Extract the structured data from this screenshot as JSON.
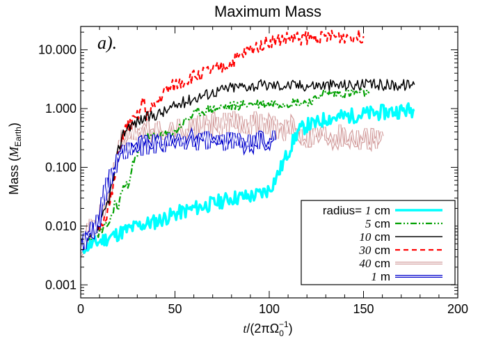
{
  "chart_data": {
    "type": "line",
    "title": "Maximum Mass",
    "panel_label": "a).",
    "xlabel": {
      "t": "t",
      "rest": "/(2πΩ",
      "sub": "0",
      "sup": "−1",
      "close": ")"
    },
    "ylabel": {
      "pre": "Mass (",
      "M": "M",
      "sub": "Earth",
      "close": ")"
    },
    "xlim": [
      0,
      200
    ],
    "ylim": [
      0.0006,
      25
    ],
    "yscale": "log",
    "xticks": [
      0,
      50,
      100,
      150,
      200
    ],
    "xtick_labels": [
      "0",
      "50",
      "100",
      "150",
      "200"
    ],
    "yticks": [
      0.001,
      0.01,
      0.1,
      1,
      10
    ],
    "ytick_labels": [
      "0.001",
      "0.010",
      "0.100",
      "1.000",
      "10.000"
    ],
    "legend": {
      "position": "bottom-right",
      "entries": [
        {
          "prefix": "radius=",
          "value": "1",
          "unit": "cm",
          "series": 0
        },
        {
          "prefix": "",
          "value": "5",
          "unit": "cm",
          "series": 1
        },
        {
          "prefix": "",
          "value": "10",
          "unit": "cm",
          "series": 2
        },
        {
          "prefix": "",
          "value": "30",
          "unit": "cm",
          "series": 3
        },
        {
          "prefix": "",
          "value": "40",
          "unit": "cm",
          "series": 4
        },
        {
          "prefix": "",
          "value": "1",
          "unit": "m",
          "series": 5
        }
      ]
    },
    "series": [
      {
        "color": "#00ffff",
        "style": "solid",
        "width": 3.5,
        "noise": 0.13,
        "seed": 11,
        "x": [
          0,
          5,
          10,
          20,
          30,
          40,
          50,
          60,
          70,
          80,
          90,
          95,
          100,
          105,
          110,
          115,
          120,
          125,
          130,
          140,
          150,
          160,
          170,
          177
        ],
        "y": [
          0.0043,
          0.0047,
          0.0055,
          0.0075,
          0.01,
          0.012,
          0.016,
          0.02,
          0.024,
          0.03,
          0.032,
          0.035,
          0.042,
          0.08,
          0.18,
          0.4,
          0.52,
          0.55,
          0.68,
          0.73,
          0.8,
          0.86,
          0.92,
          0.96
        ]
      },
      {
        "color": "#00a000",
        "style": "dashdotdot",
        "width": 2.2,
        "noise": 0.08,
        "seed": 23,
        "x": [
          0,
          5,
          8,
          12,
          16,
          18,
          20,
          22,
          25,
          27,
          30,
          32,
          35,
          40,
          45,
          50,
          55,
          60,
          65,
          70,
          75,
          80,
          85,
          90,
          100,
          110,
          120,
          125,
          127,
          130,
          140,
          150,
          153
        ],
        "y": [
          0.0045,
          0.006,
          0.007,
          0.0085,
          0.013,
          0.025,
          0.02,
          0.045,
          0.05,
          0.1,
          0.15,
          0.3,
          0.32,
          0.33,
          0.35,
          0.4,
          0.6,
          0.8,
          0.9,
          1.0,
          1.05,
          1.1,
          1.15,
          1.2,
          1.22,
          1.25,
          1.3,
          1.4,
          1.8,
          1.8,
          1.82,
          1.83,
          1.83
        ]
      },
      {
        "color": "#000000",
        "style": "solid",
        "width": 1.5,
        "noise": 0.1,
        "seed": 37,
        "x": [
          0,
          5,
          8,
          10,
          12,
          15,
          18,
          20,
          22,
          25,
          28,
          30,
          32,
          35,
          40,
          45,
          50,
          55,
          60,
          65,
          70,
          75,
          80,
          85,
          90,
          100,
          120,
          140,
          160,
          177
        ],
        "y": [
          0.005,
          0.006,
          0.008,
          0.01,
          0.015,
          0.03,
          0.08,
          0.2,
          0.35,
          0.5,
          0.55,
          0.6,
          0.65,
          0.7,
          0.8,
          0.9,
          1.1,
          1.3,
          1.5,
          1.7,
          1.9,
          2.1,
          2.3,
          2.4,
          2.45,
          2.5,
          2.5,
          2.52,
          2.53,
          2.55
        ]
      },
      {
        "color": "#ff0000",
        "style": "dashed",
        "width": 2.2,
        "noise": 0.12,
        "seed": 51,
        "x": [
          0,
          5,
          10,
          15,
          18,
          20,
          22,
          25,
          28,
          30,
          32,
          33,
          35,
          37,
          40,
          45,
          50,
          55,
          60,
          65,
          70,
          75,
          80,
          85,
          90,
          95,
          100,
          110,
          120,
          130,
          140,
          150
        ],
        "y": [
          0.005,
          0.007,
          0.01,
          0.02,
          0.06,
          0.15,
          0.35,
          0.5,
          0.6,
          0.7,
          1.0,
          1.5,
          0.8,
          0.9,
          1.2,
          2.0,
          2.5,
          3.0,
          3.5,
          4.0,
          4.5,
          5.0,
          6.0,
          8.0,
          10.0,
          12.0,
          14.0,
          15.5,
          16.0,
          16.5,
          16.8,
          17.0
        ]
      },
      {
        "color": "#d4a0a0",
        "style": "double",
        "width": 1.0,
        "noise": 0.22,
        "seed": 71,
        "x": [
          0,
          5,
          10,
          15,
          18,
          20,
          22,
          25,
          30,
          40,
          50,
          60,
          70,
          80,
          90,
          100,
          110,
          120,
          130,
          140,
          150,
          155,
          160
        ],
        "y": [
          0.005,
          0.008,
          0.013,
          0.03,
          0.1,
          0.2,
          0.3,
          0.35,
          0.4,
          0.38,
          0.42,
          0.45,
          0.5,
          0.55,
          0.6,
          0.5,
          0.45,
          0.35,
          0.38,
          0.35,
          0.32,
          0.33,
          0.34
        ]
      },
      {
        "color": "#0000cc",
        "style": "double",
        "width": 1.0,
        "noise": 0.17,
        "seed": 89,
        "x": [
          0,
          3,
          5,
          8,
          10,
          12,
          15,
          18,
          20,
          22,
          25,
          30,
          35,
          40,
          50,
          60,
          70,
          80,
          90,
          100,
          103
        ],
        "y": [
          0.005,
          0.006,
          0.008,
          0.01,
          0.015,
          0.03,
          0.06,
          0.1,
          0.15,
          0.18,
          0.2,
          0.22,
          0.23,
          0.25,
          0.27,
          0.28,
          0.28,
          0.27,
          0.29,
          0.29,
          0.29
        ]
      }
    ]
  }
}
